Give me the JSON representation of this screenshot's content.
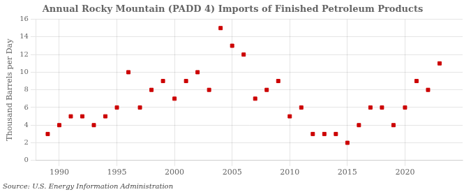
{
  "chart_data": {
    "type": "scatter",
    "title": "Annual Rocky Mountain (PADD 4) Imports of Finished Petroleum Products",
    "ylabel": "Thousand Barrels per Day",
    "annotation": "Source: U.S. Energy Information Administration",
    "x": [
      1989,
      1990,
      1991,
      1992,
      1993,
      1994,
      1995,
      1996,
      1997,
      1998,
      1999,
      2000,
      2001,
      2002,
      2003,
      2004,
      2005,
      2006,
      2007,
      2008,
      2009,
      2010,
      2011,
      2012,
      2013,
      2014,
      2015,
      2016,
      2017,
      2018,
      2019,
      2020,
      2021,
      2022,
      2023
    ],
    "values": [
      3,
      4,
      5,
      5,
      4,
      5,
      6,
      10,
      6,
      8,
      9,
      7,
      9,
      10,
      8,
      15,
      13,
      12,
      7,
      8,
      9,
      5,
      6,
      3,
      3,
      3,
      2,
      4,
      6,
      6,
      4,
      6,
      9,
      8,
      11
    ],
    "color": "#cc0000",
    "marker": "square",
    "xlim": [
      1988,
      2025
    ],
    "ylim": [
      0,
      16
    ],
    "xticks": [
      1990,
      1995,
      2000,
      2005,
      2010,
      2015,
      2020
    ],
    "yticks": [
      0,
      2,
      4,
      6,
      8,
      10,
      12,
      14,
      16
    ],
    "grid": true
  }
}
